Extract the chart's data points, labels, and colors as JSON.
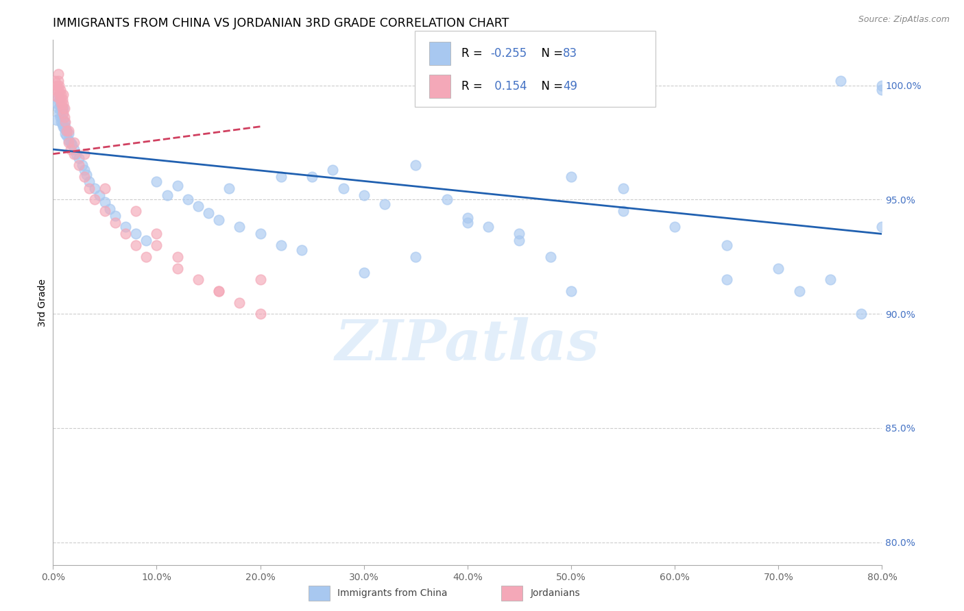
{
  "title": "IMMIGRANTS FROM CHINA VS JORDANIAN 3RD GRADE CORRELATION CHART",
  "source": "Source: ZipAtlas.com",
  "ylabel": "3rd Grade",
  "x_tick_vals": [
    0.0,
    10.0,
    20.0,
    30.0,
    40.0,
    50.0,
    60.0,
    70.0,
    80.0
  ],
  "y_tick_vals": [
    80.0,
    85.0,
    90.0,
    95.0,
    100.0
  ],
  "xlim": [
    0.0,
    80.0
  ],
  "ylim": [
    79.0,
    102.0
  ],
  "legend_R": [
    -0.255,
    0.154
  ],
  "legend_N": [
    83,
    49
  ],
  "blue_color": "#a8c8f0",
  "pink_color": "#f4a8b8",
  "blue_line_color": "#2060b0",
  "pink_line_color": "#d04060",
  "title_fontsize": 12.5,
  "watermark": "ZIPatlas",
  "blue_scatter_x": [
    0.3,
    0.4,
    0.5,
    0.5,
    0.6,
    0.6,
    0.7,
    0.7,
    0.8,
    0.8,
    0.9,
    0.9,
    1.0,
    1.0,
    1.0,
    1.1,
    1.1,
    1.2,
    1.2,
    1.3,
    1.3,
    1.5,
    1.5,
    1.7,
    1.8,
    2.0,
    2.2,
    2.5,
    2.8,
    3.0,
    3.2,
    3.5,
    4.0,
    4.5,
    5.0,
    5.5,
    6.0,
    7.0,
    8.0,
    9.0,
    10.0,
    11.0,
    12.0,
    13.0,
    14.0,
    15.0,
    16.0,
    17.0,
    18.0,
    20.0,
    22.0,
    24.0,
    25.0,
    27.0,
    30.0,
    32.0,
    35.0,
    38.0,
    40.0,
    42.0,
    45.0,
    48.0,
    50.0,
    55.0,
    60.0,
    65.0,
    70.0,
    75.0,
    78.0,
    30.0,
    35.0,
    40.0,
    45.0,
    50.0,
    22.0,
    28.0,
    55.0,
    65.0,
    72.0,
    76.0,
    80.0,
    80.0,
    80.0
  ],
  "blue_scatter_y": [
    98.5,
    99.2,
    99.0,
    99.5,
    98.8,
    99.3,
    98.6,
    99.1,
    98.4,
    98.9,
    98.3,
    98.7,
    98.2,
    98.5,
    99.0,
    98.1,
    98.4,
    97.9,
    98.2,
    97.8,
    98.0,
    97.6,
    97.9,
    97.5,
    97.4,
    97.2,
    97.0,
    96.8,
    96.5,
    96.3,
    96.1,
    95.8,
    95.5,
    95.2,
    94.9,
    94.6,
    94.3,
    93.8,
    93.5,
    93.2,
    95.8,
    95.2,
    95.6,
    95.0,
    94.7,
    94.4,
    94.1,
    95.5,
    93.8,
    93.5,
    93.0,
    92.8,
    96.0,
    96.3,
    95.2,
    94.8,
    96.5,
    95.0,
    94.2,
    93.8,
    93.2,
    92.5,
    96.0,
    95.5,
    93.8,
    93.0,
    92.0,
    91.5,
    90.0,
    91.8,
    92.5,
    94.0,
    93.5,
    91.0,
    96.0,
    95.5,
    94.5,
    91.5,
    91.0,
    100.2,
    100.0,
    99.8,
    93.8
  ],
  "pink_scatter_x": [
    0.2,
    0.3,
    0.4,
    0.4,
    0.5,
    0.5,
    0.5,
    0.6,
    0.6,
    0.7,
    0.7,
    0.8,
    0.8,
    0.9,
    0.9,
    1.0,
    1.0,
    1.0,
    1.1,
    1.1,
    1.2,
    1.3,
    1.5,
    1.5,
    1.7,
    2.0,
    2.0,
    2.5,
    3.0,
    3.5,
    4.0,
    5.0,
    6.0,
    7.0,
    8.0,
    9.0,
    10.0,
    12.0,
    14.0,
    16.0,
    18.0,
    20.0,
    3.0,
    5.0,
    8.0,
    12.0,
    16.0,
    20.0,
    10.0
  ],
  "pink_scatter_y": [
    100.2,
    99.8,
    100.0,
    99.5,
    99.8,
    100.2,
    100.5,
    99.6,
    100.0,
    99.4,
    99.8,
    99.2,
    99.6,
    99.0,
    99.4,
    98.8,
    99.2,
    99.6,
    98.6,
    99.0,
    98.4,
    98.0,
    97.5,
    98.0,
    97.2,
    97.0,
    97.5,
    96.5,
    96.0,
    95.5,
    95.0,
    94.5,
    94.0,
    93.5,
    93.0,
    92.5,
    93.0,
    92.0,
    91.5,
    91.0,
    90.5,
    90.0,
    97.0,
    95.5,
    94.5,
    92.5,
    91.0,
    91.5,
    93.5
  ],
  "blue_line_x0": 0.0,
  "blue_line_y0": 97.2,
  "blue_line_x1": 80.0,
  "blue_line_y1": 93.5,
  "pink_line_x0": 0.0,
  "pink_line_y0": 97.0,
  "pink_line_x1": 20.0,
  "pink_line_y1": 98.2
}
